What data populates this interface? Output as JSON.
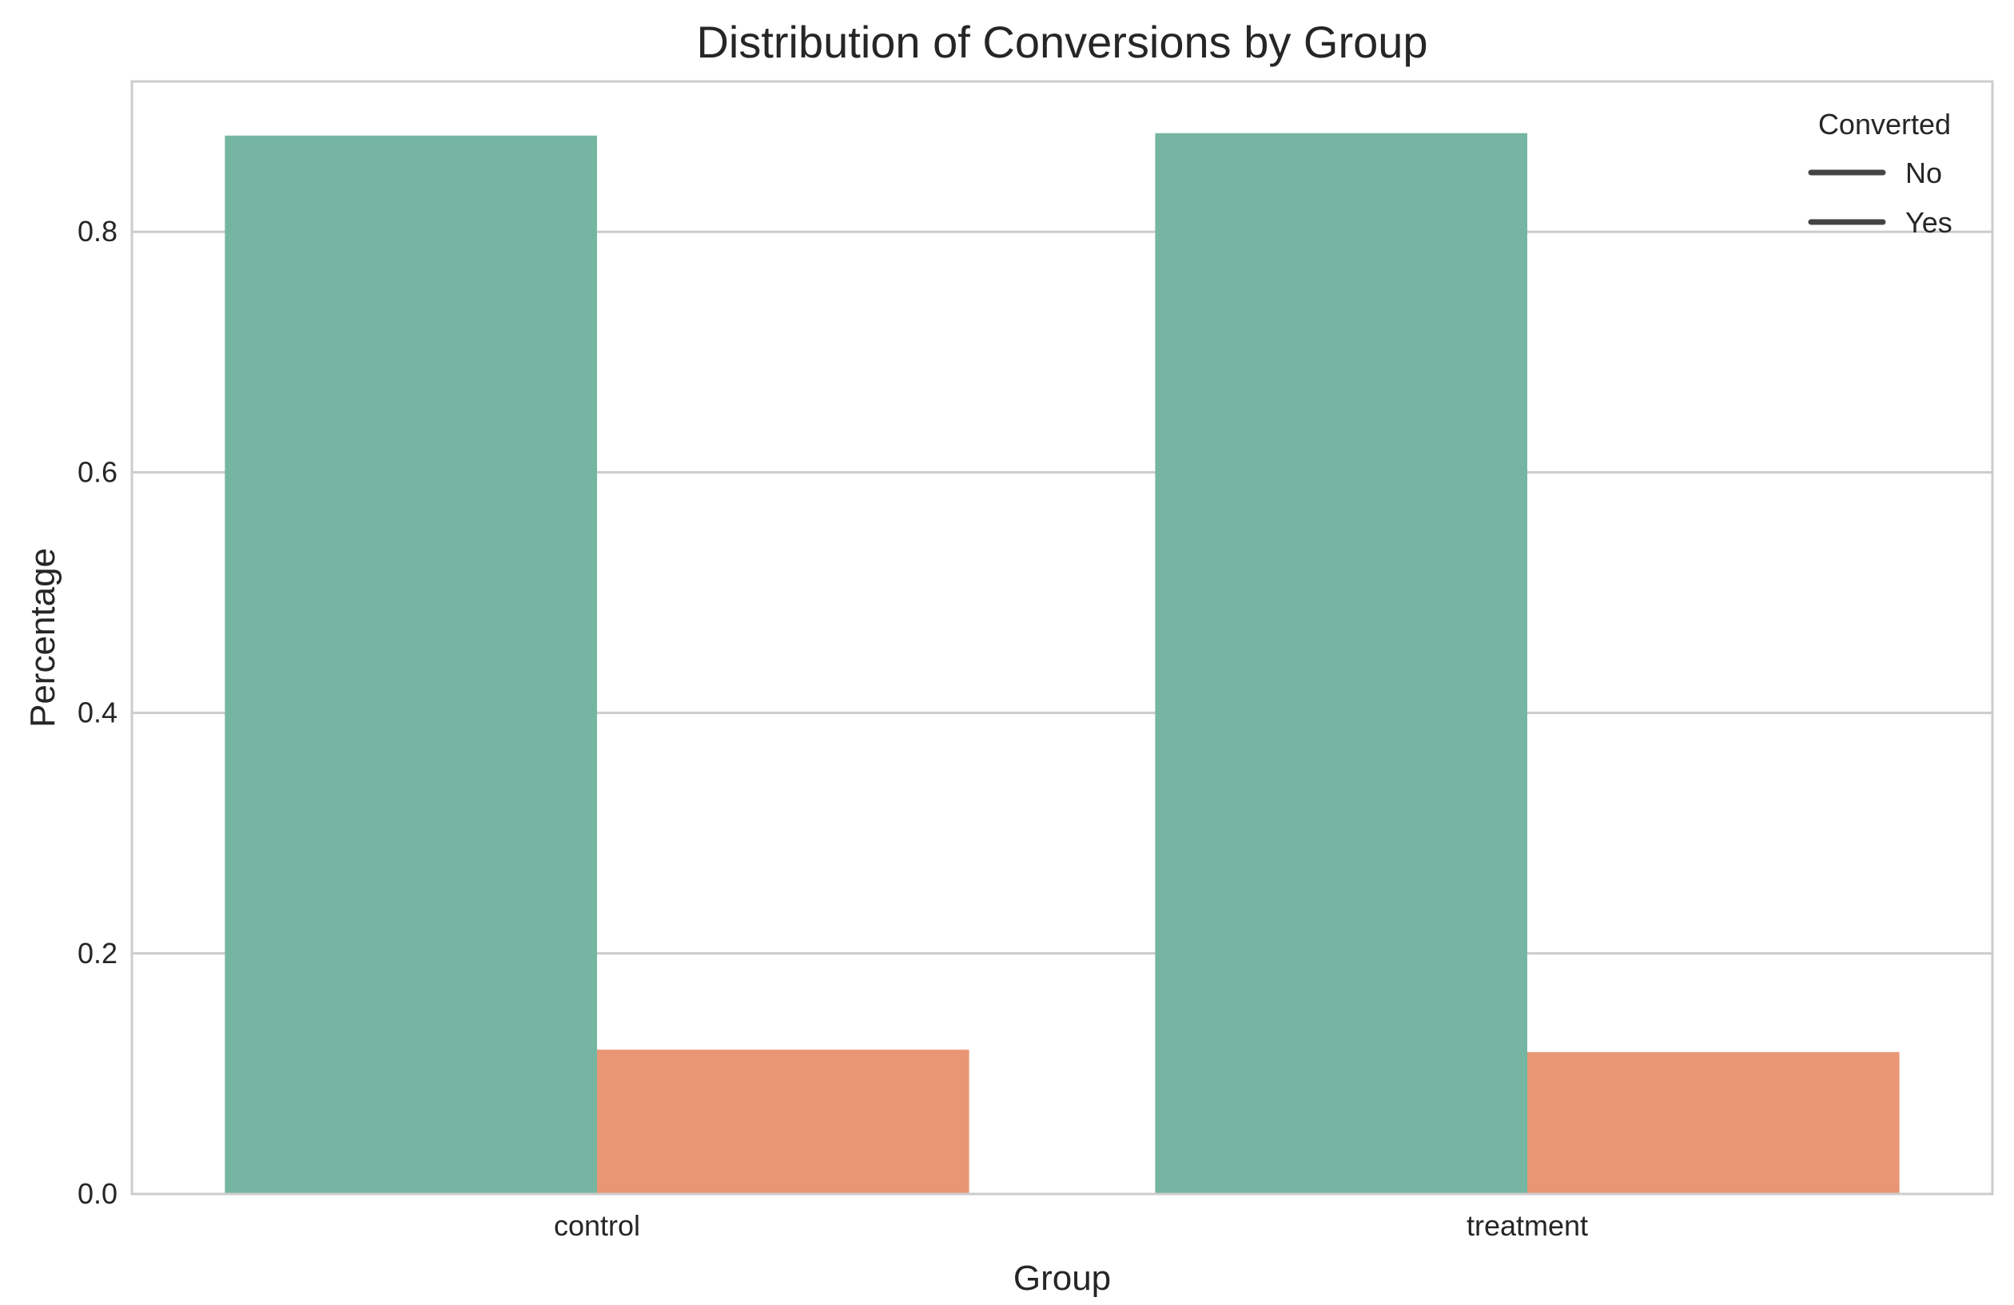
{
  "chart_data": {
    "type": "bar",
    "title": "Distribution of Conversions by Group",
    "xlabel": "Group",
    "ylabel": "Percentage",
    "categories": [
      "control",
      "treatment"
    ],
    "series": [
      {
        "name": "No",
        "color": "#76b5a1",
        "values": [
          0.88,
          0.882
        ]
      },
      {
        "name": "Yes",
        "color": "#e89674",
        "values": [
          0.12,
          0.118
        ]
      }
    ],
    "ylim": [
      0,
      0.925
    ],
    "yticks": [
      0.0,
      0.2,
      0.4,
      0.6,
      0.8
    ],
    "ytick_labels": [
      "0.0",
      "0.2",
      "0.4",
      "0.6",
      "0.8"
    ],
    "grid": "horizontal",
    "legend": {
      "title": "Converted",
      "placement": "top-right",
      "entries": [
        "No",
        "Yes"
      ],
      "line_color": "#444444"
    }
  }
}
